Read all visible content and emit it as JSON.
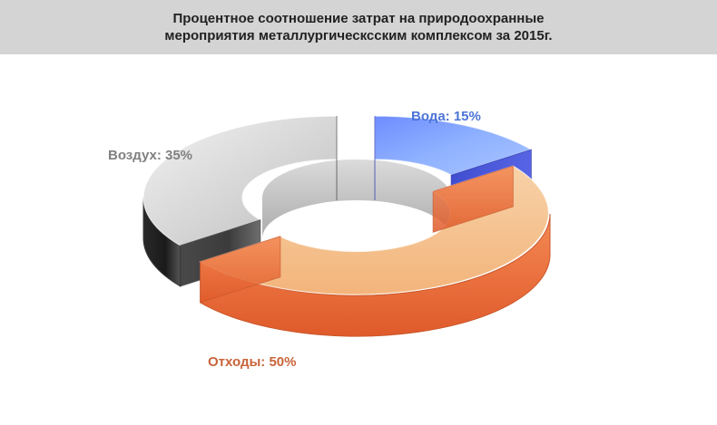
{
  "title": {
    "line1": "Процентное соотношение затрат на природоохранные",
    "line2": "мероприятия металлургическсским комплексом за 2015г."
  },
  "chart_data": {
    "type": "pie",
    "style": "3d-donut",
    "title": "Процентное соотношение затрат на природоохранные мероприятия металлургическсским комплексом за 2015г.",
    "categories": [
      "Вода",
      "Отходы",
      "Воздух"
    ],
    "values": [
      15,
      50,
      35
    ],
    "unit": "%",
    "labels": [
      "Вода: 15%",
      "Отходы: 50%",
      "Воздух: 35%"
    ],
    "colors": {
      "Вода": "#4a6ee0",
      "Отходы": "#ef8f4f",
      "Воздух": "#8a8a8a"
    },
    "label_colors": {
      "Вода": "#4c74d6",
      "Отходы": "#c8643a",
      "Воздух": "#808080"
    },
    "legend": "none"
  }
}
